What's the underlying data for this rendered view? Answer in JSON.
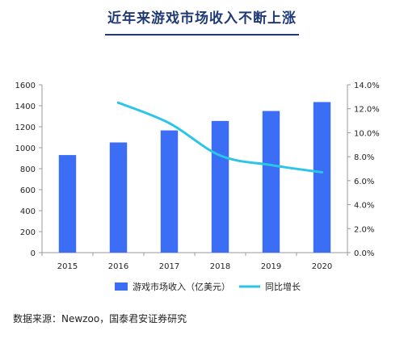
{
  "title": "近年来游戏市场收入不断上涨",
  "source": "数据来源：Newzoo，国泰君安证券研究",
  "chart_data": {
    "type": "bar+line",
    "categories": [
      "2015",
      "2016",
      "2017",
      "2018",
      "2019",
      "2020"
    ],
    "series": [
      {
        "name": "游戏市场收入（亿美元）",
        "type": "bar",
        "axis": "left",
        "values": [
          930,
          1050,
          1165,
          1255,
          1350,
          1435
        ],
        "color": "#3b6ef5"
      },
      {
        "name": "同比增长",
        "type": "line",
        "axis": "right",
        "values": [
          null,
          12.5,
          10.8,
          8.1,
          7.3,
          6.7
        ],
        "color": "#2bc5e6"
      }
    ],
    "y_left": {
      "min": 0,
      "max": 1600,
      "step": 200,
      "ticks": [
        "0",
        "200",
        "400",
        "600",
        "800",
        "1000",
        "1200",
        "1400",
        "1600"
      ]
    },
    "y_right": {
      "min": 0,
      "max": 14,
      "step": 2,
      "ticks": [
        "0.0%",
        "2.0%",
        "4.0%",
        "6.0%",
        "8.0%",
        "10.0%",
        "12.0%",
        "14.0%"
      ]
    },
    "grid": false,
    "legend_position": "bottom"
  }
}
